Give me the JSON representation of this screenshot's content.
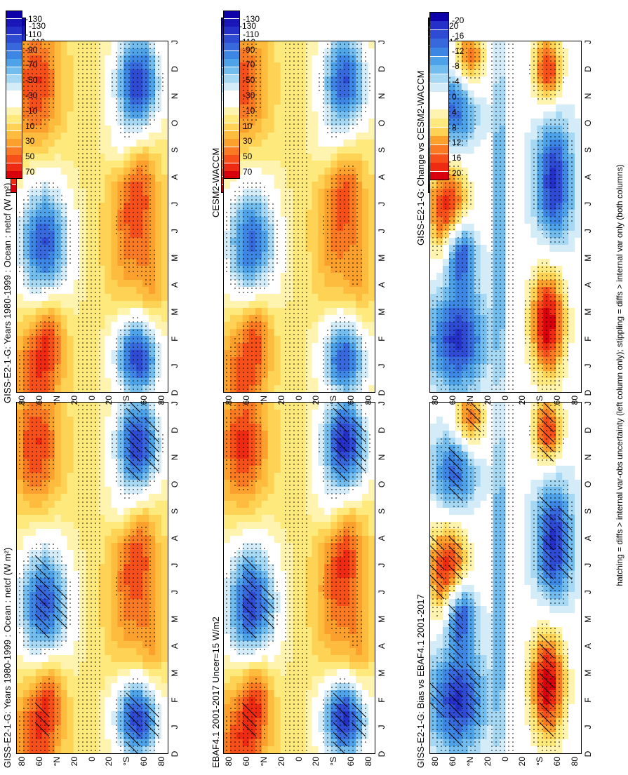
{
  "footer_note": "hatching = diffs > internal var-obs uncertainty (left column only); stippling = diffs > internal var only (both columns)",
  "colors": {
    "main_palette": [
      "#d8000c",
      "#ee2a12",
      "#f64f1a",
      "#f97a22",
      "#fba02c",
      "#fdbc3e",
      "#fed355",
      "#fee97c",
      "#fff3b0",
      "#ffffff",
      "#ffffff",
      "#d4ecf8",
      "#a7d8f3",
      "#73bdee",
      "#4ea3e8",
      "#3d86e3",
      "#3768dc",
      "#2f4bd3",
      "#2430c8",
      "#1a16b8",
      "#0d00a8"
    ],
    "diff_palette": [
      "#d8000c",
      "#ee2a12",
      "#f64f1a",
      "#f97a22",
      "#fba02c",
      "#fed355",
      "#fee97c",
      "#fff3b0",
      "#ffffff",
      "#ffffff",
      "#d4ecf8",
      "#a7d8f3",
      "#73bdee",
      "#4ea3e8",
      "#3d86e3",
      "#3768dc",
      "#2f4bd3",
      "#2430c8",
      "#0d00a8"
    ]
  },
  "chart_data": [
    {
      "type": "heatmap",
      "id": "p1",
      "title": "GISS-E2-1-G: Years 1980-1999 : Ocean : netcf (W m²)",
      "x_tick_labels": [
        "D",
        "J",
        "F",
        "M",
        "A",
        "M",
        "J",
        "J",
        "A",
        "S",
        "O",
        "N",
        "D",
        "J"
      ],
      "y_tick_labels": [
        "80",
        "60",
        "°N",
        "20",
        "0",
        "20",
        "°S",
        "60",
        "80"
      ],
      "y_range": [
        -90,
        90
      ],
      "hatching": true,
      "stippling": true,
      "colorbar": {
        "ticks": [
          "70",
          "50",
          "30",
          "10",
          "-10",
          "-30",
          "-50",
          "-70",
          "-90",
          "-110",
          "-130"
        ],
        "range": [
          80,
          -140
        ]
      }
    },
    {
      "type": "heatmap",
      "id": "p2",
      "title": "GISS-E2-1-G: Years 1980-1999 : Ocean : netcf (W m²)",
      "x_tick_labels": [
        "D",
        "J",
        "F",
        "M",
        "A",
        "M",
        "J",
        "J",
        "A",
        "S",
        "O",
        "N",
        "D",
        "J"
      ],
      "y_tick_labels": [
        "80",
        "60",
        "°N",
        "20",
        "0",
        "20",
        "°S",
        "60",
        "80"
      ],
      "y_range": [
        -90,
        90
      ],
      "hatching": false,
      "stippling": true,
      "colorbar": {
        "ticks": [
          "70",
          "50",
          "30",
          "10",
          "-10",
          "-30",
          "-50",
          "-70",
          "-90",
          "-110",
          "-130"
        ],
        "range": [
          80,
          -140
        ]
      }
    },
    {
      "type": "heatmap",
      "id": "p3",
      "title": "EBAF4.1 2001-2017 Uncer=15 W/m2",
      "x_tick_labels": [
        "D",
        "J",
        "F",
        "M",
        "A",
        "M",
        "J",
        "J",
        "A",
        "S",
        "O",
        "N",
        "D",
        "J"
      ],
      "y_tick_labels": [
        "80",
        "60",
        "°N",
        "20",
        "0",
        "20",
        "°S",
        "60",
        "80"
      ],
      "y_range": [
        -90,
        90
      ],
      "hatching": true,
      "stippling": true,
      "colorbar": {
        "ticks": [
          "70",
          "50",
          "30",
          "10",
          "-10",
          "-30",
          "-50",
          "-70",
          "-90",
          "-110",
          "-130"
        ],
        "range": [
          80,
          -140
        ]
      }
    },
    {
      "type": "heatmap",
      "id": "p4",
      "title": "CESM2-WACCM",
      "x_tick_labels": [
        "D",
        "J",
        "F",
        "M",
        "A",
        "M",
        "J",
        "J",
        "A",
        "S",
        "O",
        "N",
        "D",
        "J"
      ],
      "y_tick_labels": [
        "80",
        "60",
        "°N",
        "20",
        "0",
        "20",
        "°S",
        "60",
        "80"
      ],
      "y_range": [
        -90,
        90
      ],
      "hatching": false,
      "stippling": true,
      "colorbar": {
        "ticks": [
          "70",
          "50",
          "30",
          "10",
          "-10",
          "-30",
          "-50",
          "-70",
          "-90",
          "-110",
          "-130"
        ],
        "range": [
          80,
          -140
        ]
      }
    },
    {
      "type": "heatmap",
      "id": "p5",
      "title": "GISS-E2-1-G: Bias vs EBAF4.1 2001-2017",
      "x_tick_labels": [
        "D",
        "J",
        "F",
        "M",
        "A",
        "M",
        "J",
        "J",
        "A",
        "S",
        "O",
        "N",
        "D",
        "J"
      ],
      "y_tick_labels": [
        "80",
        "60",
        "°N",
        "20",
        "0",
        "20",
        "°S",
        "60",
        "80"
      ],
      "y_range": [
        -90,
        90
      ],
      "hatching": true,
      "stippling": true,
      "colorbar": {
        "ticks": [
          "20",
          "16",
          "12",
          "8",
          "4",
          "0",
          "-4",
          "-8",
          "-12",
          "-16",
          "-20"
        ],
        "range": [
          22,
          -22
        ]
      }
    },
    {
      "type": "heatmap",
      "id": "p6",
      "title": "GISS-E2-1-G: Change vs CESM2-WACCM",
      "x_tick_labels": [
        "D",
        "J",
        "F",
        "M",
        "A",
        "M",
        "J",
        "J",
        "A",
        "S",
        "O",
        "N",
        "D",
        "J"
      ],
      "y_tick_labels": [
        "80",
        "60",
        "°N",
        "20",
        "0",
        "20",
        "°S",
        "60",
        "80"
      ],
      "y_range": [
        -90,
        90
      ],
      "hatching": false,
      "stippling": true,
      "colorbar": {
        "ticks": [
          "20",
          "16",
          "12",
          "8",
          "4",
          "0",
          "-4",
          "-8",
          "-12",
          "-16",
          "-20"
        ],
        "range": [
          22,
          -22
        ]
      }
    }
  ]
}
